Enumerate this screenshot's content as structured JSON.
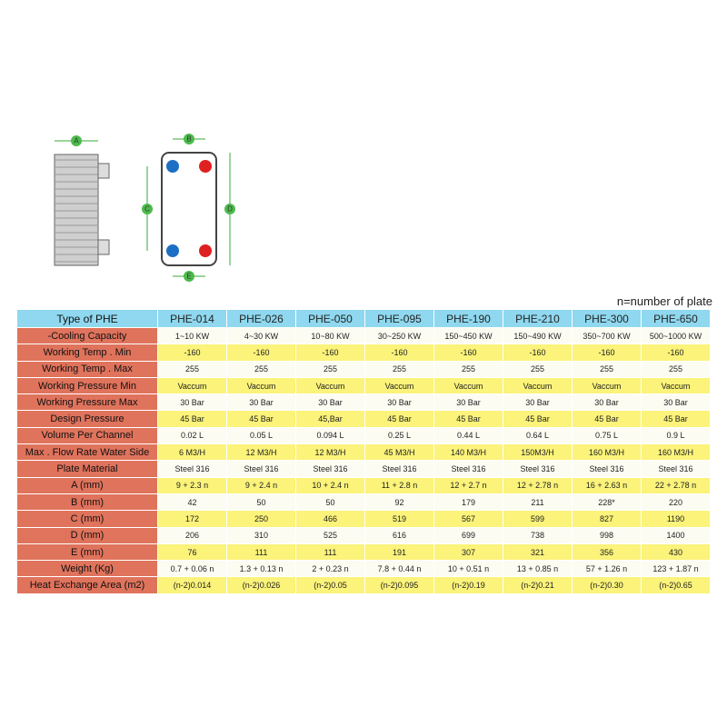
{
  "diagram": {
    "labels": [
      "A",
      "B",
      "C",
      "D",
      "E"
    ]
  },
  "note": "n=number of plate",
  "table": {
    "header": [
      "Type of PHE",
      "PHE-014",
      "PHE-026",
      "PHE-050",
      "PHE-095",
      "PHE-190",
      "PHE-210",
      "PHE-300",
      "PHE-650"
    ],
    "rows": [
      [
        "-Cooling Capacity",
        "1~10 KW",
        "4~30 KW",
        "10~80 KW",
        "30~250 KW",
        "150~450 KW",
        "150~490 KW",
        "350~700 KW",
        "500~1000 KW"
      ],
      [
        "Working Temp . Min",
        "-160",
        "-160",
        "-160",
        "-160",
        "-160",
        "-160",
        "-160",
        "-160"
      ],
      [
        "Working Temp . Max",
        "255",
        "255",
        "255",
        "255",
        "255",
        "255",
        "255",
        "255"
      ],
      [
        "Working Pressure Min",
        "Vaccum",
        "Vaccum",
        "Vaccum",
        "Vaccum",
        "Vaccum",
        "Vaccum",
        "Vaccum",
        "Vaccum"
      ],
      [
        "Working Pressure Max",
        "30 Bar",
        "30 Bar",
        "30 Bar",
        "30 Bar",
        "30 Bar",
        "30 Bar",
        "30 Bar",
        "30 Bar"
      ],
      [
        "Design Pressure",
        "45 Bar",
        "45 Bar",
        "45,Bar",
        "45 Bar",
        "45 Bar",
        "45 Bar",
        "45 Bar",
        "45 Bar"
      ],
      [
        "Volume Per Channel",
        "0.02 L",
        "0.05 L",
        "0.094 L",
        "0.25 L",
        "0.44 L",
        "0.64 L",
        "0.75 L",
        "0.9 L"
      ],
      [
        "Max . Flow Rate Water Side",
        "6 M3/H",
        "12 M3/H",
        "12 M3/H",
        "45 M3/H",
        "140 M3/H",
        "150M3/H",
        "160 M3/H",
        "160 M3/H"
      ],
      [
        "Plate Material",
        "Steel 316",
        "Steel 316",
        "Steel 316",
        "Steel 316",
        "Steel 316",
        "Steel 316",
        "Steel 316",
        "Steel 316"
      ],
      [
        "A  (mm)",
        "9 + 2.3 n",
        "9 + 2.4 n",
        "10 + 2.4 n",
        "11 + 2.8 n",
        "12 + 2.7 n",
        "12 + 2.78 n",
        "16 + 2.63 n",
        "22 + 2.78 n"
      ],
      [
        "B  (mm)",
        "42",
        "50",
        "50",
        "92",
        "179",
        "211",
        "228*",
        "220"
      ],
      [
        "C  (mm)",
        "172",
        "250",
        "466",
        "519",
        "567",
        "599",
        "827",
        "1190"
      ],
      [
        "D  (mm)",
        "206",
        "310",
        "525",
        "616",
        "699",
        "738",
        "998",
        "1400"
      ],
      [
        "E  (mm)",
        "76",
        "111",
        "111",
        "191",
        "307",
        "321",
        "356",
        "430"
      ],
      [
        "Weight  (Kg)",
        "0.7 + 0.06  n",
        "1.3 + 0.13  n",
        "2 + 0.23  n",
        "7.8 + 0.44  n",
        "10 + 0.51  n",
        "13 + 0.85  n",
        "57 + 1.26  n",
        "123 + 1.87  n"
      ],
      [
        "Heat Exchange Area  (m2)",
        "(n-2)0.014",
        "(n-2)0.026",
        "(n-2)0.05",
        "(n-2)0.095",
        "(n-2)0.19",
        "(n-2)0.21",
        "(n-2)0.30",
        "(n-2)0.65"
      ]
    ]
  }
}
